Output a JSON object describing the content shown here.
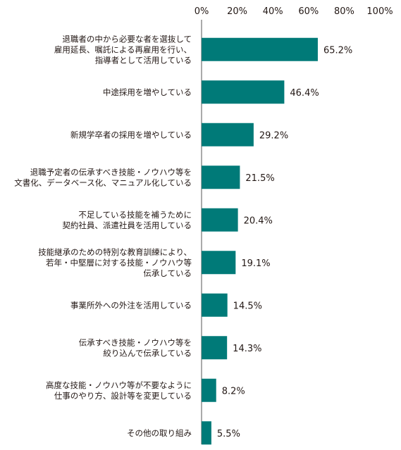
{
  "chart_data": {
    "type": "bar",
    "orientation": "horizontal",
    "xlim": [
      0,
      100
    ],
    "xticks": [
      "0%",
      "20%",
      "40%",
      "60%",
      "80%",
      "100%"
    ],
    "tick_values": [
      0,
      20,
      40,
      60,
      80,
      100
    ],
    "bar_color": "#007a78",
    "categories": [
      [
        "退職者の中から必要な者を選抜して",
        "雇用延長、嘱託による再雇用を行い、",
        "指導者として活用している"
      ],
      [
        "中途採用を増やしている"
      ],
      [
        "新規学卒者の採用を増やしている"
      ],
      [
        "退職予定者の伝承すべき技能・ノウハウ等を",
        "文書化、データベース化、マニュアル化している"
      ],
      [
        "不足している技能を補うために",
        "契約社員、派遣社員を活用している"
      ],
      [
        "技能継承のための特別な教育訓練により、",
        "若年・中堅層に対する技能・ノウハウ等",
        "伝承している"
      ],
      [
        "事業所外への外注を活用している"
      ],
      [
        "伝承すべき技能・ノウハウ等を",
        "絞り込んで伝承している"
      ],
      [
        "高度な技能・ノウハウ等が不要なように",
        "仕事のやり方、設計等を変更している"
      ],
      [
        "その他の取り組み"
      ]
    ],
    "values": [
      65.2,
      46.4,
      29.2,
      21.5,
      20.4,
      19.1,
      14.5,
      14.3,
      8.2,
      5.5
    ],
    "value_labels": [
      "65.2%",
      "46.4%",
      "29.2%",
      "21.5%",
      "20.4%",
      "19.1%",
      "14.5%",
      "14.3%",
      "8.2%",
      "5.5%"
    ]
  }
}
